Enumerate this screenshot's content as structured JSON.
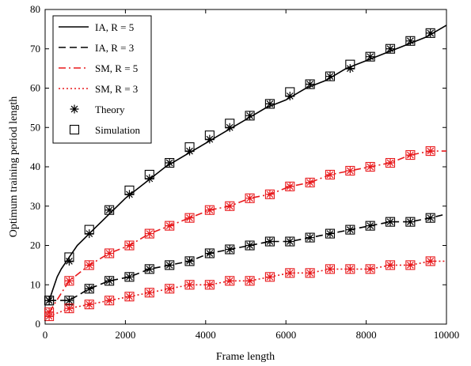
{
  "chart_data": {
    "type": "line",
    "xlabel": "Frame length",
    "ylabel": "Optimum training period length",
    "xlim": [
      0,
      10000
    ],
    "ylim": [
      0,
      80
    ],
    "xticks": [
      "0",
      "2000",
      "4000",
      "6000",
      "8000",
      "10000"
    ],
    "yticks": [
      "0",
      "10",
      "20",
      "30",
      "40",
      "50",
      "60",
      "70",
      "80"
    ],
    "grid": false,
    "legend_position": "top-left",
    "series": [
      {
        "name": "IA, R = 5",
        "color": "#000000",
        "style": "solid",
        "x": [
          100,
          200,
          300,
          400,
          600,
          800,
          1000,
          1300,
          1600,
          2000,
          2500,
          3000,
          3500,
          4000,
          4500,
          5000,
          5500,
          6000,
          6500,
          7000,
          7500,
          8000,
          8500,
          9000,
          9500,
          10000
        ],
        "y": [
          6,
          9,
          12,
          14,
          17,
          20,
          22,
          25,
          28,
          32,
          36,
          40,
          43,
          46,
          49,
          52,
          55,
          57,
          60,
          62,
          65,
          67,
          69,
          71,
          73,
          76
        ]
      },
      {
        "name": "IA, R = 3",
        "color": "#000000",
        "style": "dashed",
        "x": [
          100,
          600,
          1100,
          1600,
          2100,
          2600,
          3100,
          3600,
          4100,
          4600,
          5100,
          5600,
          6100,
          6600,
          7100,
          7600,
          8100,
          8600,
          9100,
          9600,
          10000
        ],
        "y": [
          6,
          6,
          9,
          11,
          12,
          14,
          15,
          16,
          18,
          19,
          20,
          21,
          21,
          22,
          23,
          24,
          25,
          26,
          26,
          27,
          28
        ]
      },
      {
        "name": "SM, R = 5",
        "color": "#e8191c",
        "style": "dashdot",
        "x": [
          100,
          600,
          1100,
          1600,
          2100,
          2600,
          3100,
          3600,
          4100,
          4600,
          5100,
          5600,
          6100,
          6600,
          7100,
          7600,
          8100,
          8600,
          9100,
          9600,
          10000
        ],
        "y": [
          3,
          11,
          15,
          18,
          20,
          23,
          25,
          27,
          29,
          30,
          32,
          33,
          35,
          36,
          38,
          39,
          40,
          41,
          43,
          44,
          44
        ]
      },
      {
        "name": "SM, R = 3",
        "color": "#e8191c",
        "style": "dotted",
        "x": [
          100,
          600,
          1100,
          1600,
          2100,
          2600,
          3100,
          3600,
          4100,
          4600,
          5100,
          5600,
          6100,
          6600,
          7100,
          7600,
          8100,
          8600,
          9100,
          9600,
          10000
        ],
        "y": [
          2,
          4,
          5,
          6,
          7,
          8,
          9,
          10,
          10,
          11,
          11,
          12,
          13,
          13,
          14,
          14,
          14,
          15,
          15,
          16,
          16
        ]
      }
    ],
    "markers": [
      {
        "name": "Theory",
        "symbol": "asterisk",
        "x": [
          100,
          600,
          1100,
          1600,
          2100,
          2600,
          3100,
          3600,
          4100,
          4600,
          5100,
          5600,
          6100,
          6600,
          7100,
          7600,
          8100,
          8600,
          9100,
          9600
        ],
        "y_by_series": [
          [
            6,
            16,
            23,
            29,
            33,
            37,
            41,
            44,
            47,
            50,
            53,
            56,
            58,
            61,
            63,
            65,
            68,
            70,
            72,
            74
          ],
          [
            6,
            6,
            9,
            11,
            12,
            14,
            15,
            16,
            18,
            19,
            20,
            21,
            21,
            22,
            23,
            24,
            25,
            26,
            26,
            27
          ],
          [
            3,
            11,
            15,
            18,
            20,
            23,
            25,
            27,
            29,
            30,
            32,
            33,
            35,
            36,
            38,
            39,
            40,
            41,
            43,
            44
          ],
          [
            2,
            4,
            5,
            6,
            7,
            8,
            9,
            10,
            10,
            11,
            11,
            12,
            13,
            13,
            14,
            14,
            14,
            15,
            15,
            16
          ]
        ]
      },
      {
        "name": "Simulation",
        "symbol": "square",
        "x": [
          100,
          600,
          1100,
          1600,
          2100,
          2600,
          3100,
          3600,
          4100,
          4600,
          5100,
          5600,
          6100,
          6600,
          7100,
          7600,
          8100,
          8600,
          9100,
          9600
        ],
        "y_by_series": [
          [
            6,
            17,
            24,
            29,
            34,
            38,
            41,
            45,
            48,
            51,
            53,
            56,
            59,
            61,
            63,
            66,
            68,
            70,
            72,
            74
          ],
          [
            6,
            6,
            9,
            11,
            12,
            14,
            15,
            16,
            18,
            19,
            20,
            21,
            21,
            22,
            23,
            24,
            25,
            26,
            26,
            27
          ],
          [
            3,
            11,
            15,
            18,
            20,
            23,
            25,
            27,
            29,
            30,
            32,
            33,
            35,
            36,
            38,
            39,
            40,
            41,
            43,
            44
          ],
          [
            2,
            4,
            5,
            6,
            7,
            8,
            9,
            10,
            10,
            11,
            11,
            12,
            13,
            13,
            14,
            14,
            14,
            15,
            15,
            16
          ]
        ]
      }
    ]
  }
}
